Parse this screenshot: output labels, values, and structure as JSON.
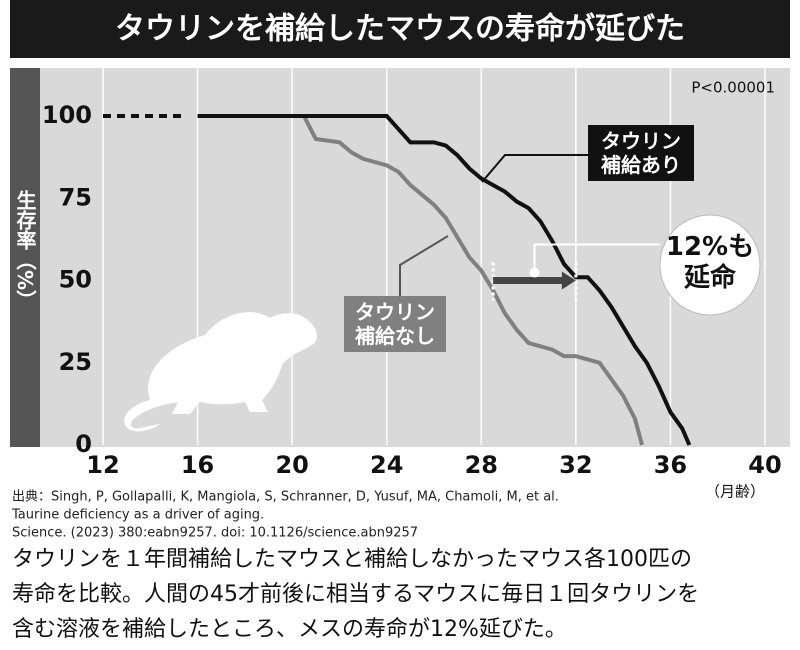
{
  "title": "タウリンを補給したマウスの寿命が延びた",
  "chart_data": {
    "type": "line",
    "ylabel": "生存率（%）",
    "xlabel": "（月齢）",
    "p_value": "P<0.00001",
    "xlim": [
      12,
      40
    ],
    "xticks": [
      12,
      16,
      20,
      24,
      28,
      32,
      36,
      40
    ],
    "ylim": [
      0,
      100
    ],
    "yticks": [
      0,
      25,
      50,
      75,
      100
    ],
    "grid": "x",
    "series": [
      {
        "name": "タウリン\n補給あり",
        "color": "#111111",
        "x": [
          12,
          16,
          24,
          24.5,
          25,
          26,
          26.5,
          27,
          27.5,
          28,
          28.5,
          29,
          29.5,
          30,
          30.5,
          31,
          31.5,
          32,
          32.5,
          33,
          33.5,
          34,
          34.5,
          35,
          35.5,
          36,
          36.5,
          36.8
        ],
        "values": [
          100,
          100,
          100,
          96,
          92,
          92,
          91,
          88,
          84,
          81,
          79,
          77,
          74,
          72,
          68,
          62,
          55,
          51,
          51,
          47,
          42,
          36,
          30,
          25,
          18,
          10,
          5,
          0
        ]
      },
      {
        "name": "タウリン\n補給なし",
        "color": "#808080",
        "x": [
          12,
          16,
          20.5,
          21,
          22,
          22.5,
          23,
          24,
          24.5,
          25,
          25.5,
          26,
          26.5,
          27,
          27.5,
          28,
          28.5,
          29,
          29.5,
          30,
          30.5,
          31,
          31.5,
          32,
          33,
          33.5,
          34,
          34.5,
          34.8
        ],
        "values": [
          100,
          100,
          100,
          93,
          92,
          89,
          87,
          85,
          83,
          79,
          76,
          73,
          69,
          63,
          57,
          53,
          47,
          40,
          35,
          31,
          30,
          29,
          27,
          27,
          25,
          20,
          15,
          8,
          0
        ]
      }
    ],
    "annotation": {
      "text": "12%も\n延命",
      "from": 28.5,
      "to": 32,
      "y": 50
    }
  },
  "source": [
    "出典：Singh, P, Gollapalli, K, Mangiola, S, Schranner, D, Yusuf, MA, Chamoli, M, et al.",
    "Taurine deficiency as a driver of aging.",
    "Science. (2023) 380:eabn9257. doi: 10.1126/science.abn9257"
  ],
  "caption": [
    "タウリンを１年間補給したマウスと補給しなかったマウス各100匹の",
    "寿命を比較。人間の45才前後に相当するマウスに毎日１回タウリンを",
    "含む溶液を補給したところ、メスの寿命が12%延びた。"
  ]
}
